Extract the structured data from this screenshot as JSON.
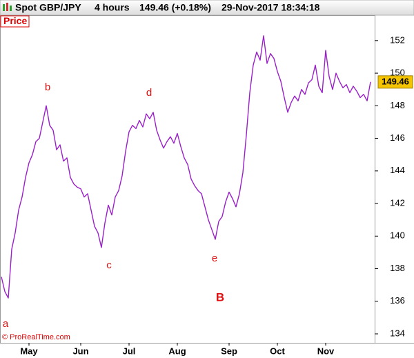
{
  "header": {
    "instrument": "Spot GBP/JPY",
    "period": "4 hours",
    "quote": "149.46 (+0.18%)",
    "timestamp": "29-Nov-2017 18:34:18"
  },
  "footer": "© ProRealTime.com",
  "chart_data": {
    "type": "line",
    "title": "Price",
    "annotations": [
      "a",
      "b",
      "c",
      "d",
      "e",
      "B"
    ],
    "categories": [
      null,
      null,
      null,
      null,
      null,
      null,
      null,
      null,
      "May",
      null,
      null,
      null,
      null,
      null,
      null,
      null,
      null,
      null,
      null,
      null,
      null,
      null,
      null,
      "Jun",
      null,
      null,
      null,
      null,
      null,
      null,
      null,
      null,
      null,
      null,
      null,
      null,
      null,
      "Jul",
      null,
      null,
      null,
      null,
      null,
      null,
      null,
      null,
      null,
      null,
      null,
      null,
      null,
      "Aug",
      null,
      null,
      null,
      null,
      null,
      null,
      null,
      null,
      null,
      null,
      null,
      null,
      null,
      null,
      "Sep",
      null,
      null,
      null,
      null,
      null,
      null,
      null,
      null,
      null,
      null,
      null,
      null,
      null,
      "Oct",
      null,
      null,
      null,
      null,
      null,
      null,
      null,
      null,
      null,
      null,
      null,
      null,
      null,
      "Nov",
      null,
      null,
      null,
      null,
      null,
      null,
      null,
      null,
      null,
      null,
      null,
      null,
      null
    ],
    "series": [
      {
        "name": "Spot GBP/JPY",
        "color": "#9a1fc9",
        "values": [
          137.5,
          136.6,
          136.2,
          139.2,
          140.2,
          141.6,
          142.4,
          143.6,
          144.5,
          145.0,
          145.8,
          146.0,
          147.0,
          148.0,
          146.8,
          146.5,
          145.3,
          145.6,
          144.6,
          144.8,
          143.6,
          143.2,
          143.0,
          142.9,
          142.4,
          142.6,
          141.6,
          140.6,
          140.2,
          139.3,
          140.8,
          141.9,
          141.3,
          142.4,
          142.8,
          143.7,
          145.2,
          146.4,
          146.8,
          146.6,
          147.1,
          146.7,
          147.5,
          147.2,
          147.6,
          146.5,
          145.9,
          145.4,
          145.8,
          146.1,
          145.7,
          146.3,
          145.5,
          144.8,
          144.4,
          143.5,
          143.1,
          142.8,
          142.6,
          141.8,
          141.0,
          140.4,
          139.8,
          140.9,
          141.2,
          142.1,
          142.7,
          142.3,
          141.8,
          142.6,
          143.9,
          146.2,
          148.8,
          150.5,
          151.3,
          150.8,
          152.3,
          150.6,
          151.2,
          150.9,
          150.1,
          149.5,
          148.5,
          147.6,
          148.2,
          148.6,
          148.3,
          149.0,
          148.7,
          149.4,
          149.6,
          150.5,
          149.2,
          148.8,
          151.4,
          149.8,
          149.0,
          150.0,
          149.5,
          149.1,
          149.3,
          148.8,
          149.2,
          148.9,
          148.5,
          148.7,
          148.3,
          149.46
        ]
      }
    ],
    "ylim": [
      133.45,
      153.56
    ],
    "yticks": [
      134,
      136,
      138,
      140,
      142,
      144,
      146,
      148,
      150,
      152
    ],
    "last_value_color": "#f5c400"
  }
}
